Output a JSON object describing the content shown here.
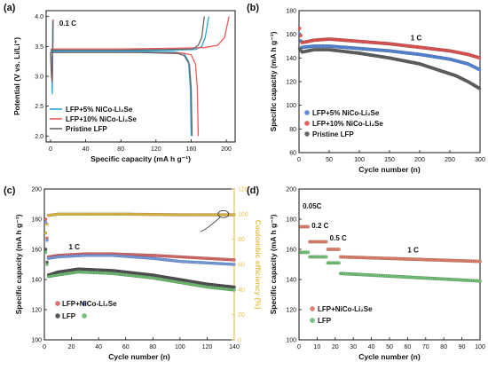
{
  "chart_data": [
    {
      "panel": "(a)",
      "type": "line",
      "xlabel": "Specific capacity (mA h g⁻¹)",
      "ylabel": "Potential (V vs. Li/Li⁺)",
      "xlim": [
        -5,
        210
      ],
      "ylim": [
        1.9,
        4.1
      ],
      "xticks": [
        0,
        40,
        80,
        120,
        160,
        200
      ],
      "yticks": [
        2.0,
        2.5,
        3.0,
        3.5,
        4.0
      ],
      "annotations": [
        {
          "text": "0.1 C",
          "x": 10,
          "y": 3.85
        }
      ],
      "legend": "bottom-left",
      "series": [
        {
          "name": "LFP+5% NiCo-Li₂Se",
          "color": "#2aa7d6",
          "charge": [
            [
              0,
              3.4
            ],
            [
              3,
              3.42
            ],
            [
              20,
              3.43
            ],
            [
              80,
              3.43
            ],
            [
              140,
              3.44
            ],
            [
              165,
              3.45
            ],
            [
              172,
              3.5
            ],
            [
              176,
              3.65
            ],
            [
              180,
              4.0
            ]
          ],
          "discharge": [
            [
              0,
              3.42
            ],
            [
              40,
              3.42
            ],
            [
              100,
              3.42
            ],
            [
              140,
              3.41
            ],
            [
              152,
              3.38
            ],
            [
              157,
              3.25
            ],
            [
              159,
              2.8
            ],
            [
              160,
              2.0
            ]
          ],
          "initial": [
            [
              0,
              3.4
            ],
            [
              1,
              3.3
            ],
            [
              2,
              2.7
            ],
            [
              2.5,
              3.95
            ]
          ]
        },
        {
          "name": "LFP+10% NiCo-Li₂Se",
          "color": "#ef5a5a",
          "charge": [
            [
              0,
              3.45
            ],
            [
              3,
              3.46
            ],
            [
              20,
              3.46
            ],
            [
              80,
              3.46
            ],
            [
              140,
              3.47
            ],
            [
              175,
              3.48
            ],
            [
              190,
              3.52
            ],
            [
              198,
              3.65
            ],
            [
              203,
              4.0
            ]
          ],
          "discharge": [
            [
              0,
              3.4
            ],
            [
              40,
              3.4
            ],
            [
              100,
              3.4
            ],
            [
              150,
              3.39
            ],
            [
              160,
              3.36
            ],
            [
              165,
              3.2
            ],
            [
              167,
              2.8
            ],
            [
              168,
              2.0
            ]
          ],
          "initial": [
            [
              0,
              3.4
            ],
            [
              1,
              3.0
            ],
            [
              2,
              2.9
            ],
            [
              3,
              3.95
            ]
          ]
        },
        {
          "name": "Pristine LFP",
          "color": "#666666",
          "charge": [
            [
              0,
              3.43
            ],
            [
              3,
              3.44
            ],
            [
              20,
              3.44
            ],
            [
              80,
              3.44
            ],
            [
              140,
              3.45
            ],
            [
              162,
              3.46
            ],
            [
              168,
              3.52
            ],
            [
              172,
              3.65
            ],
            [
              175,
              4.0
            ]
          ],
          "discharge": [
            [
              0,
              3.4
            ],
            [
              40,
              3.4
            ],
            [
              100,
              3.4
            ],
            [
              145,
              3.38
            ],
            [
              152,
              3.35
            ],
            [
              158,
              3.2
            ],
            [
              160,
              2.8
            ],
            [
              161,
              2.0
            ]
          ],
          "initial": [
            [
              0,
              3.4
            ],
            [
              1,
              3.1
            ],
            [
              2,
              2.9
            ],
            [
              3,
              3.92
            ]
          ]
        }
      ]
    },
    {
      "panel": "(b)",
      "type": "scatter",
      "xlabel": "Cycle number (n)",
      "ylabel": "Specific capacity (mA h g⁻¹)",
      "xlim": [
        0,
        300
      ],
      "ylim": [
        60,
        180
      ],
      "xticks": [
        0,
        50,
        100,
        150,
        200,
        250,
        300
      ],
      "yticks": [
        60,
        80,
        100,
        120,
        140,
        160,
        180
      ],
      "annotations": [
        {
          "text": "1 C",
          "x": 185,
          "y": 155
        }
      ],
      "legend": "bottom-left",
      "series": [
        {
          "name": "LFP+5% NiCo-Li₂Se",
          "color": "#5b8fe6",
          "points": [
            [
              1,
              160
            ],
            [
              5,
              149
            ],
            [
              25,
              150
            ],
            [
              50,
              150
            ],
            [
              100,
              148
            ],
            [
              150,
              146
            ],
            [
              200,
              143
            ],
            [
              250,
              139
            ],
            [
              280,
              135
            ],
            [
              300,
              130
            ]
          ]
        },
        {
          "name": "LFP+10% NiCo-Li₂Se",
          "color": "#ef5a5a",
          "points": [
            [
              1,
              165
            ],
            [
              5,
              153
            ],
            [
              25,
              155
            ],
            [
              50,
              156
            ],
            [
              100,
              154
            ],
            [
              150,
              152
            ],
            [
              200,
              149
            ],
            [
              250,
              146
            ],
            [
              280,
              143
            ],
            [
              300,
              140
            ]
          ]
        },
        {
          "name": "Pristine LFP",
          "color": "#666666",
          "points": [
            [
              1,
              148
            ],
            [
              5,
              145
            ],
            [
              25,
              147
            ],
            [
              50,
              147
            ],
            [
              100,
              144
            ],
            [
              150,
              140
            ],
            [
              200,
              135
            ],
            [
              230,
              130
            ],
            [
              260,
              125
            ],
            [
              280,
              120
            ],
            [
              300,
              114
            ]
          ]
        }
      ]
    },
    {
      "panel": "(c)",
      "type": "scatter",
      "xlabel": "Cycle number (n)",
      "ylabel": "Specific capacity (mA h g⁻¹)",
      "y2label": "Coulombic efficiency (%)",
      "xlim": [
        0,
        140
      ],
      "ylim": [
        100,
        200
      ],
      "y2lim": [
        0,
        120
      ],
      "xticks": [
        0,
        20,
        40,
        60,
        80,
        100,
        120,
        140
      ],
      "yticks": [
        100,
        120,
        140,
        160,
        180,
        200
      ],
      "y2ticks": [
        0,
        20,
        40,
        60,
        80,
        100,
        120
      ],
      "annotations": [
        {
          "text": "1 C",
          "x": 18,
          "y": 160
        }
      ],
      "legend": "bottom-left",
      "series": [
        {
          "name": "LFP+NiCo-Li₂Se",
          "color": "#e46f6f",
          "color2": "#7ea4ee",
          "points": [
            [
              1,
              180
            ],
            [
              3,
              155
            ],
            [
              10,
              156
            ],
            [
              30,
              157
            ],
            [
              50,
              157
            ],
            [
              80,
              156
            ],
            [
              100,
              155
            ],
            [
              120,
              154
            ],
            [
              140,
              153
            ]
          ],
          "points2": [
            [
              1,
              178
            ],
            [
              3,
              154
            ],
            [
              10,
              155
            ],
            [
              30,
              156
            ],
            [
              50,
              156
            ],
            [
              80,
              154
            ],
            [
              100,
              152
            ],
            [
              120,
              151
            ],
            [
              140,
              150
            ]
          ]
        },
        {
          "name": "LFP",
          "color": "#555555",
          "color2": "#73c776",
          "points": [
            [
              1,
              160
            ],
            [
              3,
              143
            ],
            [
              10,
              145
            ],
            [
              25,
              147
            ],
            [
              50,
              146
            ],
            [
              80,
              143
            ],
            [
              100,
              140
            ],
            [
              120,
              137
            ],
            [
              140,
              135
            ]
          ],
          "points2": [
            [
              1,
              158
            ],
            [
              3,
              142
            ],
            [
              10,
              143
            ],
            [
              25,
              145
            ],
            [
              50,
              144
            ],
            [
              80,
              141
            ],
            [
              100,
              138
            ],
            [
              120,
              135
            ],
            [
              140,
              133
            ]
          ]
        },
        {
          "name": "Coulombic efficiency",
          "color": "#e8c04a",
          "axis": "right",
          "points": [
            [
              1,
              85
            ],
            [
              3,
              99
            ],
            [
              10,
              100
            ],
            [
              60,
              100
            ],
            [
              100,
              99.5
            ],
            [
              140,
              99.5
            ]
          ]
        }
      ]
    },
    {
      "panel": "(d)",
      "type": "scatter",
      "xlabel": "Cycle number (n)",
      "ylabel": "Specific capacity (mA h g⁻¹)",
      "xlim": [
        0,
        100
      ],
      "ylim": [
        100,
        200
      ],
      "xticks": [
        0,
        10,
        20,
        30,
        40,
        50,
        60,
        70,
        80,
        90,
        100
      ],
      "yticks": [
        100,
        120,
        140,
        160,
        180,
        200
      ],
      "annotations": [
        {
          "text": "0.05C",
          "x": 2,
          "y": 187
        },
        {
          "text": "0.2 C",
          "x": 7,
          "y": 174
        },
        {
          "text": "0.5 C",
          "x": 17,
          "y": 166
        },
        {
          "text": "1 C",
          "x": 60,
          "y": 158
        }
      ],
      "legend": "bottom-left",
      "series": [
        {
          "name": "LFP+NiCo-Li₂Se",
          "color": "#e5836b",
          "segments": [
            {
              "x": [
                1,
                5
              ],
              "y": 175
            },
            {
              "x": [
                6,
                15
              ],
              "y": 165
            },
            {
              "x": [
                16,
                22
              ],
              "y": 160
            },
            {
              "x": [
                23,
                100
              ],
              "y": [
                155,
                152
              ]
            }
          ]
        },
        {
          "name": "LFP",
          "color": "#74c77a",
          "segments": [
            {
              "x": [
                1,
                5
              ],
              "y": 158
            },
            {
              "x": [
                6,
                15
              ],
              "y": 155
            },
            {
              "x": [
                16,
                22
              ],
              "y": 151
            },
            {
              "x": [
                23,
                100
              ],
              "y": [
                144,
                139
              ]
            }
          ]
        }
      ]
    }
  ]
}
